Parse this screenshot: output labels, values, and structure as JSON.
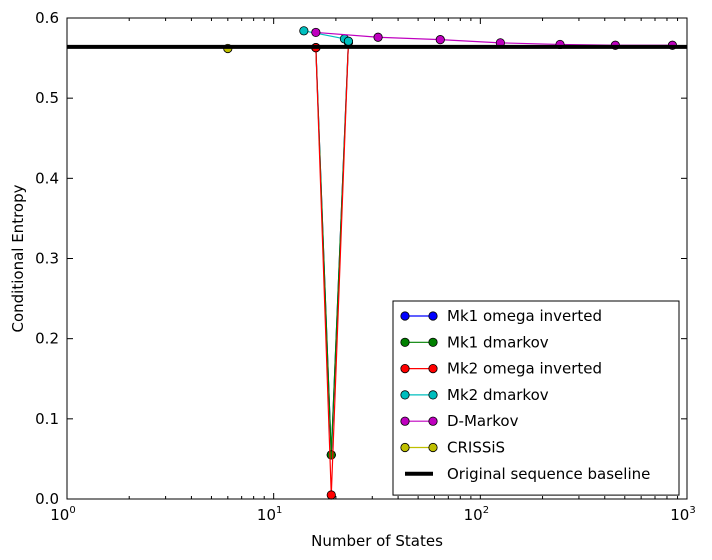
{
  "chart_data": {
    "type": "line",
    "title": "",
    "xlabel": "Number of States",
    "ylabel": "Conditional Entropy",
    "xscale": "log",
    "xlim": [
      1,
      1000
    ],
    "ylim": [
      0.0,
      0.6
    ],
    "x_ticks": [
      {
        "value": 1,
        "base": "10",
        "exp": "0"
      },
      {
        "value": 10,
        "base": "10",
        "exp": "1"
      },
      {
        "value": 100,
        "base": "10",
        "exp": "2"
      },
      {
        "value": 1000,
        "base": "10",
        "exp": "3"
      }
    ],
    "y_ticks": [
      "0.0",
      "0.1",
      "0.2",
      "0.3",
      "0.4",
      "0.5",
      "0.6"
    ],
    "grid": false,
    "legend_position": "lower-right",
    "series": [
      {
        "name": "Mk1 omega inverted",
        "color": "#0000ff",
        "marker": "circle",
        "x": [
          16,
          19,
          23
        ],
        "y": [
          0.563,
          0.055,
          0.57
        ]
      },
      {
        "name": "Mk1 dmarkov",
        "color": "#008000",
        "marker": "circle",
        "x": [
          16,
          19,
          23
        ],
        "y": [
          0.563,
          0.055,
          0.57
        ]
      },
      {
        "name": "Mk2 omega inverted",
        "color": "#ff0000",
        "marker": "circle",
        "x": [
          16,
          19,
          23
        ],
        "y": [
          0.563,
          0.005,
          0.57
        ]
      },
      {
        "name": "Mk2 dmarkov",
        "color": "#00bfbf",
        "marker": "circle",
        "x": [
          14,
          22,
          23
        ],
        "y": [
          0.584,
          0.574,
          0.571
        ]
      },
      {
        "name": "D-Markov",
        "color": "#bf00bf",
        "marker": "circle",
        "x": [
          16,
          32,
          64,
          125,
          243,
          450,
          850
        ],
        "y": [
          0.582,
          0.576,
          0.573,
          0.569,
          0.567,
          0.566,
          0.566
        ]
      },
      {
        "name": "CRISSiS",
        "color": "#bfbf00",
        "marker": "circle",
        "x": [
          6
        ],
        "y": [
          0.562
        ]
      }
    ],
    "baseline": {
      "name": "Original sequence baseline",
      "color": "#000000",
      "y": 0.564
    }
  }
}
